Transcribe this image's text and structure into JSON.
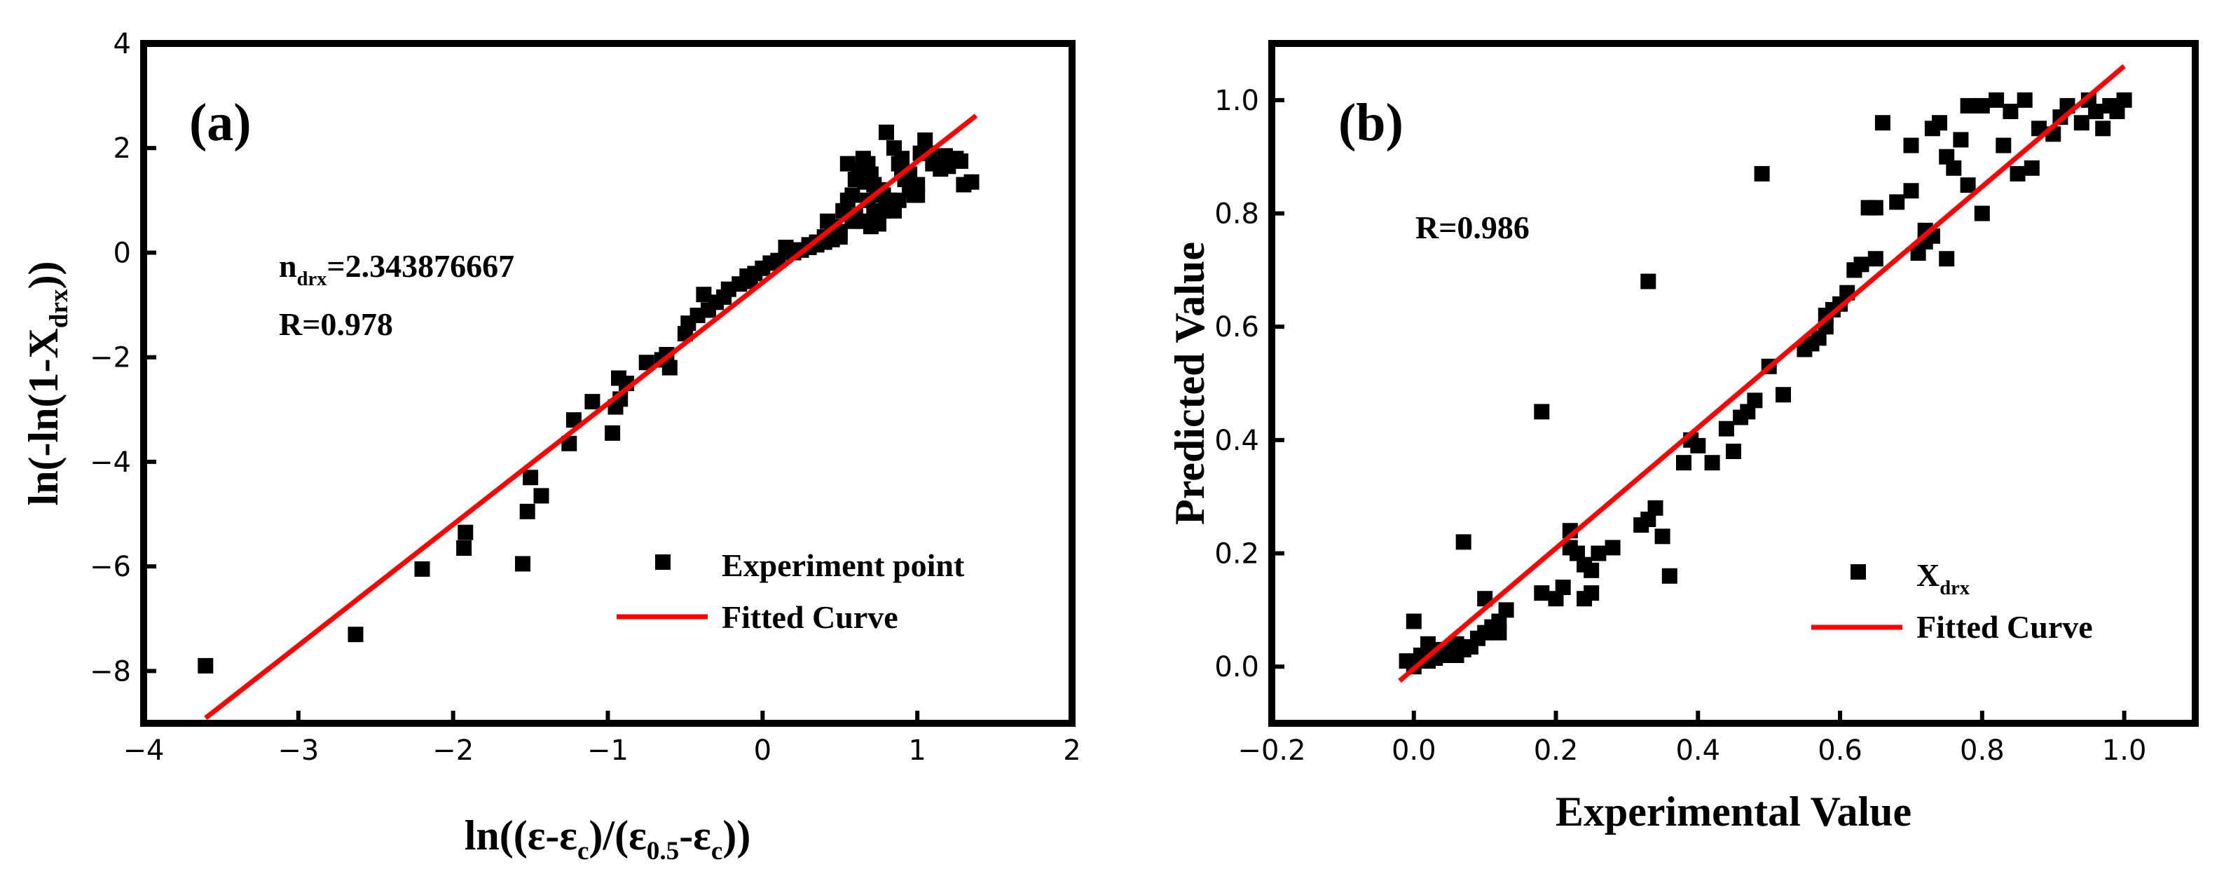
{
  "chart_data": [
    {
      "type": "scatter",
      "panel_label": "(a)",
      "xlabel_parts": [
        "ln((ε-ε",
        "c",
        ")/(ε",
        "0.5",
        "-ε",
        "c",
        "))"
      ],
      "ylabel_parts": [
        "ln(-ln(1-X",
        "drx",
        "))"
      ],
      "xlim": [
        -4,
        2
      ],
      "ylim": [
        -9,
        4
      ],
      "xticks": [
        -4,
        -3,
        -2,
        -1,
        0,
        1,
        2
      ],
      "yticks": [
        -8,
        -6,
        -4,
        -2,
        0,
        2,
        4
      ],
      "xtick_labels": [
        "−4",
        "−3",
        "−2",
        "−1",
        "0",
        "1",
        "2"
      ],
      "ytick_labels": [
        "−8",
        "−6",
        "−4",
        "−2",
        "0",
        "2",
        "4"
      ],
      "annotation": {
        "n_prefix": "n",
        "n_sub": "drx",
        "n_value": "=2.343876667",
        "r_text": "R=0.978"
      },
      "legend": [
        {
          "label": "Experiment point",
          "marker": "square"
        },
        {
          "label": "Fitted Curve",
          "marker": "line"
        }
      ],
      "fit_line": {
        "x": [
          -3.6,
          1.38
        ],
        "y": [
          -8.9,
          2.62
        ]
      },
      "series": [
        {
          "name": "Experiment point",
          "x": [
            -3.6,
            -2.63,
            -2.2,
            -1.93,
            -1.92,
            -1.55,
            -1.52,
            -1.5,
            -1.43,
            -1.25,
            -1.22,
            -1.1,
            -0.97,
            -0.95,
            -0.92,
            -0.93,
            -0.88,
            -0.75,
            -0.65,
            -0.6,
            -0.62,
            -0.5,
            -0.48,
            -0.42,
            -0.38,
            -0.35,
            -0.3,
            -0.25,
            -0.22,
            -0.15,
            -0.1,
            -0.08,
            -0.05,
            0.0,
            0.05,
            0.1,
            0.15,
            0.2,
            0.25,
            0.3,
            0.35,
            0.4,
            0.42,
            0.45,
            0.5,
            0.52,
            0.55,
            0.58,
            0.6,
            0.62,
            0.65,
            0.68,
            0.7,
            0.72,
            0.75,
            0.78,
            0.8,
            0.82,
            0.85,
            0.88,
            0.9,
            0.92,
            0.95,
            0.98,
            1.0,
            1.02,
            1.05,
            1.08,
            1.1,
            1.15,
            1.2,
            1.25,
            1.3,
            1.35,
            0.6,
            0.65,
            0.7,
            0.75,
            0.55,
            0.62,
            0.68,
            0.8,
            0.85,
            0.9,
            0.95,
            1.0,
            0.5,
            0.45,
            0.4,
            0.35,
            0.3,
            0.25,
            0.58,
            0.72,
            0.78,
            1.18,
            1.28,
            0.66,
            0.74,
            0.88
          ],
          "y": [
            -7.9,
            -7.3,
            -6.05,
            -5.65,
            -5.35,
            -5.95,
            -4.95,
            -4.3,
            -4.65,
            -3.65,
            -3.2,
            -2.85,
            -3.45,
            -2.95,
            -2.8,
            -2.4,
            -2.5,
            -2.1,
            -2.05,
            -2.2,
            -1.95,
            -1.55,
            -1.35,
            -1.2,
            -0.8,
            -1.1,
            -0.95,
            -0.85,
            -0.7,
            -0.6,
            -0.45,
            -0.55,
            -0.4,
            -0.3,
            -0.2,
            -0.15,
            0.1,
            0.0,
            0.05,
            0.15,
            0.2,
            0.3,
            0.6,
            0.5,
            0.4,
            0.8,
            1.0,
            1.1,
            1.4,
            1.6,
            1.8,
            1.7,
            1.5,
            1.3,
            1.2,
            1.1,
            0.9,
            1.0,
            0.8,
            1.7,
            1.6,
            1.4,
            1.2,
            1.1,
            1.3,
            1.9,
            2.15,
            1.9,
            1.7,
            1.6,
            1.65,
            1.8,
            1.3,
            1.35,
            0.7,
            0.6,
            0.5,
            0.55,
            1.7,
            1.5,
            1.0,
            2.3,
            2.0,
            1.8,
            1.5,
            1.1,
            0.3,
            0.25,
            0.2,
            0.15,
            0.1,
            0.05,
            0.6,
            0.75,
            0.8,
            1.85,
            1.75,
            1.35,
            1.2,
            1.0
          ]
        }
      ]
    },
    {
      "type": "scatter",
      "panel_label": "(b)",
      "xlabel": "Experimental Value",
      "ylabel": "Predicted Value",
      "xlim": [
        -0.2,
        1.1
      ],
      "ylim": [
        -0.1,
        1.1
      ],
      "xticks": [
        -0.2,
        0.0,
        0.2,
        0.4,
        0.6,
        0.8,
        1.0
      ],
      "yticks": [
        0.0,
        0.2,
        0.4,
        0.6,
        0.8,
        1.0
      ],
      "xtick_labels": [
        "−0.2",
        "0.0",
        "0.2",
        "0.4",
        "0.6",
        "0.8",
        "1.0"
      ],
      "ytick_labels": [
        "0.0",
        "0.2",
        "0.4",
        "0.6",
        "0.8",
        "1.0"
      ],
      "annotation": {
        "r_text": "R=0.986"
      },
      "legend": [
        {
          "label_main": "X",
          "label_sub": "drx",
          "marker": "square"
        },
        {
          "label": "Fitted Curve",
          "marker": "line"
        }
      ],
      "fit_line": {
        "x": [
          -0.02,
          1.0
        ],
        "y": [
          -0.025,
          1.06
        ]
      },
      "series": [
        {
          "name": "Xdrx",
          "x": [
            -0.01,
            0.0,
            0.01,
            0.02,
            0.03,
            0.04,
            0.05,
            0.06,
            0.07,
            0.08,
            0.0,
            0.02,
            0.04,
            0.06,
            0.09,
            0.1,
            0.11,
            0.12,
            0.13,
            0.1,
            0.12,
            0.07,
            0.18,
            0.18,
            0.2,
            0.21,
            0.22,
            0.23,
            0.24,
            0.25,
            0.26,
            0.22,
            0.24,
            0.25,
            0.28,
            0.32,
            0.33,
            0.34,
            0.35,
            0.36,
            0.33,
            0.38,
            0.39,
            0.4,
            0.42,
            0.44,
            0.45,
            0.46,
            0.47,
            0.48,
            0.49,
            0.5,
            0.52,
            0.55,
            0.56,
            0.57,
            0.58,
            0.59,
            0.6,
            0.61,
            0.62,
            0.63,
            0.64,
            0.65,
            0.66,
            0.68,
            0.7,
            0.71,
            0.72,
            0.73,
            0.74,
            0.75,
            0.76,
            0.77,
            0.78,
            0.8,
            0.82,
            0.84,
            0.85,
            0.86,
            0.88,
            0.9,
            0.92,
            0.94,
            0.95,
            0.96,
            0.98,
            1.0,
            0.58,
            0.62,
            0.65,
            0.7,
            0.72,
            0.78,
            0.8,
            0.83,
            0.87,
            0.91,
            0.97,
            0.99,
            0.75,
            0.73
          ],
          "y": [
            0.01,
            0.0,
            0.02,
            0.01,
            0.015,
            0.02,
            0.03,
            0.02,
            0.03,
            0.035,
            0.08,
            0.04,
            0.03,
            0.04,
            0.05,
            0.06,
            0.07,
            0.08,
            0.1,
            0.12,
            0.06,
            0.22,
            0.45,
            0.13,
            0.12,
            0.14,
            0.21,
            0.2,
            0.18,
            0.17,
            0.2,
            0.24,
            0.12,
            0.13,
            0.21,
            0.25,
            0.26,
            0.28,
            0.23,
            0.16,
            0.68,
            0.36,
            0.4,
            0.39,
            0.36,
            0.42,
            0.38,
            0.44,
            0.45,
            0.47,
            0.87,
            0.53,
            0.48,
            0.56,
            0.57,
            0.58,
            0.6,
            0.63,
            0.64,
            0.66,
            0.7,
            0.71,
            0.81,
            0.81,
            0.96,
            0.82,
            0.84,
            0.73,
            0.75,
            0.95,
            0.96,
            0.9,
            0.88,
            0.93,
            0.99,
            0.99,
            1.0,
            0.98,
            0.87,
            1.0,
            0.95,
            0.94,
            0.99,
            0.96,
            1.0,
            0.98,
            0.99,
            1.0,
            0.62,
            0.7,
            0.72,
            0.92,
            0.77,
            0.85,
            0.8,
            0.92,
            0.88,
            0.97,
            0.95,
            0.98,
            0.72,
            0.76
          ]
        }
      ]
    }
  ],
  "colors": {
    "marker": "#000000",
    "fit_line": "#ff0000",
    "frame": "#000000"
  }
}
